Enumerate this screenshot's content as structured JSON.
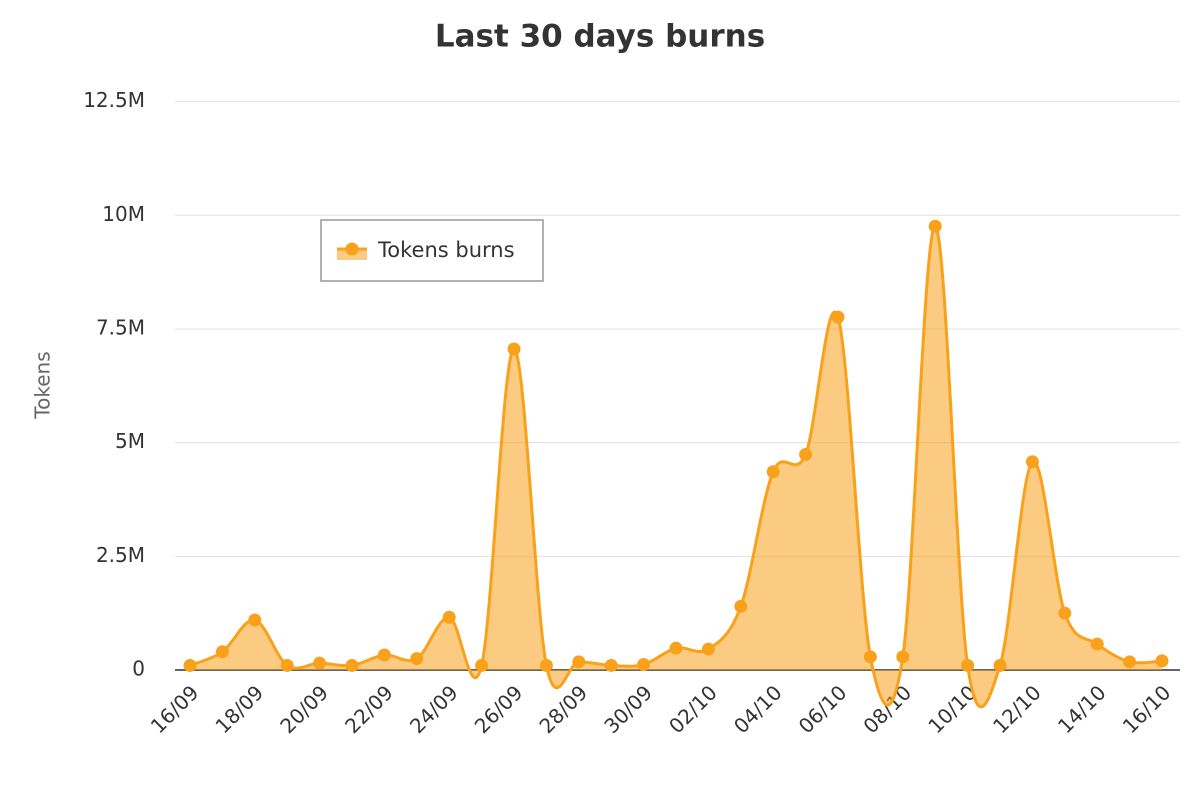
{
  "chart_data": {
    "type": "area",
    "title": "Last 30 days burns",
    "y_label": "Tokens",
    "categories": [
      "16/09",
      null,
      "18/09",
      null,
      "20/09",
      null,
      "22/09",
      null,
      "24/09",
      null,
      "26/09",
      null,
      "28/09",
      null,
      "30/09",
      null,
      "02/10",
      null,
      "04/10",
      null,
      "06/10",
      null,
      "08/10",
      null,
      "10/10",
      null,
      "12/10",
      null,
      "14/10",
      null,
      "16/10"
    ],
    "series": [
      {
        "name": "Tokens burns",
        "color": "#f9a11b",
        "values": [
          100000,
          400000,
          1100000,
          100000,
          150000,
          100000,
          330000,
          250000,
          1160000,
          100000,
          7060000,
          100000,
          180000,
          100000,
          120000,
          480000,
          460000,
          1400000,
          4360000,
          4740000,
          7760000,
          290000,
          290000,
          9760000,
          100000,
          100000,
          4580000,
          1250000,
          570000,
          180000,
          200000
        ]
      }
    ],
    "ylim": [
      0,
      12500000
    ],
    "yticks": [
      0,
      {
        "value": 2500000,
        "label": "2.5M"
      },
      {
        "value": 5000000,
        "label": "5M"
      },
      {
        "value": 7500000,
        "label": "7.5M"
      },
      {
        "value": 10000000,
        "label": "10M"
      },
      {
        "value": 12500000,
        "label": "12.5M"
      }
    ],
    "grid": true,
    "legend": "top-left"
  }
}
